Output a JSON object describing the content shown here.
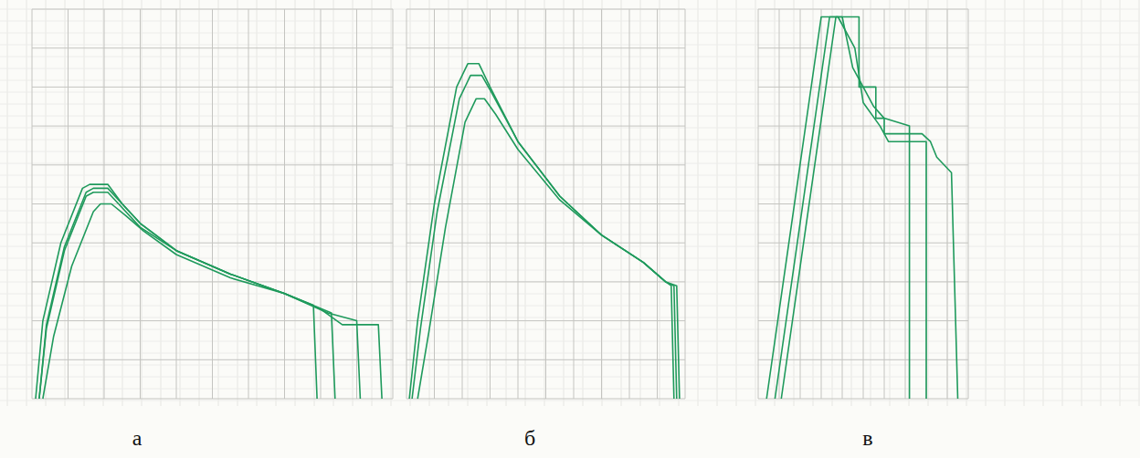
{
  "chart_data": [
    {
      "type": "line",
      "title": "а",
      "xlim": [
        0,
        100
      ],
      "ylim": [
        0,
        100
      ],
      "xticks": [
        0,
        10,
        20,
        30,
        40,
        50,
        60,
        70,
        80,
        90,
        100
      ],
      "yticks": [
        0,
        10,
        20,
        30,
        40,
        50,
        60,
        70,
        80,
        90,
        100
      ],
      "grid": true,
      "tick_labels": false,
      "series": [
        {
          "color": "#1f9a5c",
          "x": [
            1,
            3,
            8,
            14,
            16,
            21,
            25,
            30,
            40,
            55,
            70,
            78,
            79
          ],
          "values": [
            0,
            20,
            40,
            54,
            55,
            55,
            50,
            45,
            38,
            32,
            27,
            24,
            0
          ]
        },
        {
          "color": "#1f9a5c",
          "x": [
            2,
            4,
            9,
            15,
            17,
            21,
            25,
            30,
            40,
            55,
            70,
            83,
            84
          ],
          "values": [
            0,
            18,
            38,
            52,
            53,
            53,
            49,
            44,
            38,
            32,
            27,
            22,
            0
          ]
        },
        {
          "color": "#1f9a5c",
          "x": [
            3,
            6,
            11,
            17,
            19,
            22,
            26,
            31,
            40,
            55,
            70,
            82,
            90,
            91
          ],
          "values": [
            0,
            16,
            34,
            48,
            50,
            50,
            47,
            43,
            37,
            31,
            27,
            22,
            20,
            0
          ]
        },
        {
          "color": "#1f9a5c",
          "x": [
            2,
            4,
            9,
            15,
            17,
            21,
            25,
            30,
            40,
            55,
            70,
            80,
            86,
            96,
            97
          ],
          "values": [
            0,
            19,
            39,
            53,
            54,
            54,
            50,
            45,
            38,
            32,
            27,
            23,
            19,
            19,
            0
          ]
        }
      ]
    },
    {
      "type": "line",
      "title": "б",
      "xlim": [
        0,
        100
      ],
      "ylim": [
        0,
        100
      ],
      "xticks": [
        0,
        10,
        20,
        30,
        40,
        50,
        60,
        70,
        80,
        90,
        100
      ],
      "yticks": [
        0,
        10,
        20,
        30,
        40,
        50,
        60,
        70,
        80,
        90,
        100
      ],
      "grid": true,
      "tick_labels": false,
      "series": [
        {
          "color": "#1f9a5c",
          "x": [
            1,
            4,
            10,
            18,
            22,
            26,
            30,
            40,
            55,
            70,
            85,
            93,
            95,
            96
          ],
          "values": [
            0,
            20,
            50,
            80,
            86,
            86,
            80,
            66,
            52,
            42,
            35,
            30,
            29,
            0
          ]
        },
        {
          "color": "#1f9a5c",
          "x": [
            2,
            5,
            11,
            19,
            23,
            27,
            31,
            40,
            55,
            70,
            85,
            93,
            96,
            97
          ],
          "values": [
            0,
            18,
            48,
            77,
            83,
            83,
            78,
            66,
            52,
            42,
            35,
            30,
            29,
            0
          ]
        },
        {
          "color": "#1f9a5c",
          "x": [
            4,
            8,
            14,
            21,
            25,
            28,
            32,
            40,
            55,
            70,
            85,
            93,
            97,
            98
          ],
          "values": [
            0,
            17,
            44,
            71,
            77,
            77,
            73,
            64,
            51,
            42,
            35,
            30,
            29,
            0
          ]
        }
      ]
    },
    {
      "type": "line",
      "title": "в",
      "xlim": [
        0,
        100
      ],
      "ylim": [
        0,
        100
      ],
      "xticks": [
        0,
        10,
        20,
        30,
        40,
        50,
        60,
        70,
        80,
        90,
        100
      ],
      "yticks": [
        0,
        10,
        20,
        30,
        40,
        50,
        60,
        70,
        80,
        90,
        100
      ],
      "grid": true,
      "tick_labels": false,
      "series": [
        {
          "color": "#1f9a5c",
          "x": [
            4,
            30,
            43,
            48,
            48,
            56,
            56,
            60,
            60,
            78,
            82,
            85,
            92,
            95
          ],
          "values": [
            0,
            98,
            98,
            98,
            80,
            80,
            72,
            72,
            68,
            68,
            66,
            62,
            58,
            0
          ]
        },
        {
          "color": "#1f9a5c",
          "x": [
            11,
            37,
            40,
            45,
            50,
            55,
            60,
            72,
            72
          ],
          "values": [
            0,
            98,
            98,
            85,
            80,
            75,
            72,
            70,
            0
          ]
        },
        {
          "color": "#1f9a5c",
          "x": [
            8,
            34,
            38,
            46,
            50,
            58,
            62,
            80,
            80
          ],
          "values": [
            0,
            98,
            98,
            90,
            76,
            70,
            66,
            66,
            0
          ]
        }
      ]
    }
  ]
}
